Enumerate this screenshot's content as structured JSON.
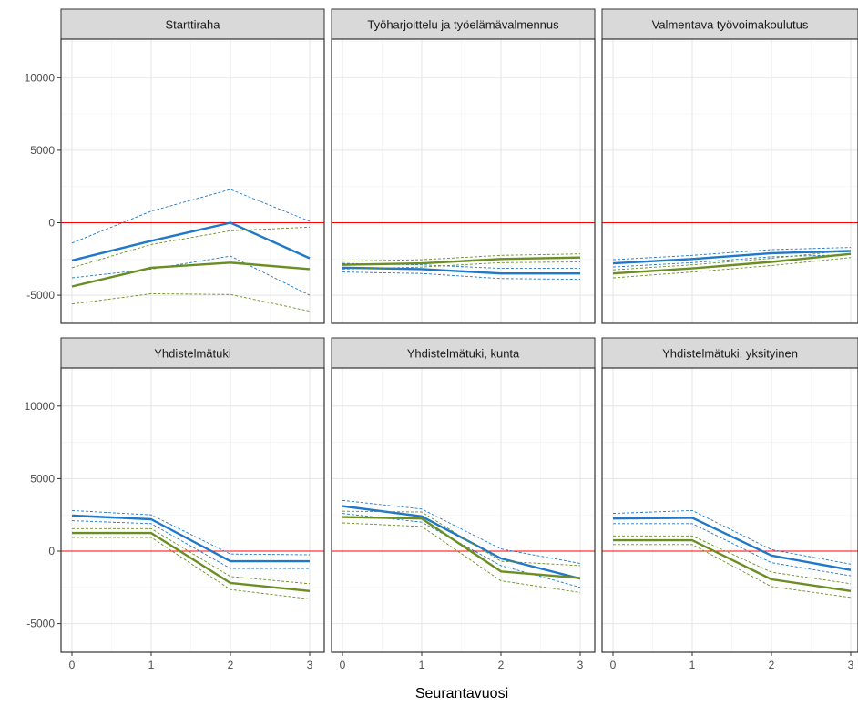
{
  "chart_data": {
    "type": "line",
    "xlabel": "Seurantavuosi",
    "ylabel": "",
    "x": [
      0,
      1,
      2,
      3
    ],
    "xticks": [
      "0",
      "1",
      "2",
      "3"
    ],
    "yticks": [
      -5000,
      0,
      5000,
      10000
    ],
    "ylim": [
      -7000,
      12600
    ],
    "xlim": [
      -0.15,
      3.05
    ],
    "grid": true,
    "reference_line": {
      "y": 0,
      "color": "#ff0000"
    },
    "colors": {
      "blue": "#1f78c8",
      "green": "#6b8e23",
      "reference": "#ff0000"
    },
    "panels": [
      {
        "title": "Starttiraha",
        "series": [
          {
            "color": "blue",
            "values": [
              -2600,
              -1250,
              0,
              -2450
            ],
            "lower": [
              -3800,
              -3200,
              -2300,
              -5000
            ],
            "upper": [
              -1400,
              800,
              2300,
              100
            ]
          },
          {
            "color": "green",
            "values": [
              -4400,
              -3100,
              -2750,
              -3200
            ],
            "lower": [
              -5600,
              -4900,
              -4950,
              -6100
            ],
            "upper": [
              -3100,
              -1500,
              -550,
              -300
            ]
          }
        ]
      },
      {
        "title": "Työharjoittelu ja työelämävalmennus",
        "series": [
          {
            "color": "blue",
            "values": [
              -3100,
              -3200,
              -3500,
              -3500
            ],
            "lower": [
              -3400,
              -3500,
              -3850,
              -3900
            ],
            "upper": [
              -2800,
              -2900,
              -3150,
              -3150
            ]
          },
          {
            "color": "green",
            "values": [
              -2900,
              -2800,
              -2500,
              -2400
            ],
            "lower": [
              -3200,
              -3050,
              -2750,
              -2700
            ],
            "upper": [
              -2650,
              -2550,
              -2250,
              -2150
            ]
          }
        ]
      },
      {
        "title": "Valmentava työvoimakoulutus",
        "series": [
          {
            "color": "blue",
            "values": [
              -2800,
              -2500,
              -2100,
              -1950
            ],
            "lower": [
              -3050,
              -2750,
              -2350,
              -2200
            ],
            "upper": [
              -2550,
              -2250,
              -1850,
              -1700
            ]
          },
          {
            "color": "green",
            "values": [
              -3500,
              -3150,
              -2700,
              -2150
            ],
            "lower": [
              -3800,
              -3400,
              -2950,
              -2400
            ],
            "upper": [
              -3250,
              -2900,
              -2450,
              -1900
            ]
          }
        ]
      },
      {
        "title": "Yhdistelmätuki",
        "series": [
          {
            "color": "blue",
            "values": [
              2450,
              2200,
              -700,
              -700
            ],
            "lower": [
              2100,
              1900,
              -1200,
              -1200
            ],
            "upper": [
              2800,
              2500,
              -200,
              -250
            ]
          },
          {
            "color": "green",
            "values": [
              1250,
              1250,
              -2200,
              -2750
            ],
            "lower": [
              950,
              950,
              -2650,
              -3300
            ],
            "upper": [
              1550,
              1550,
              -1750,
              -2250
            ]
          }
        ]
      },
      {
        "title": "Yhdistelmätuki, kunta",
        "series": [
          {
            "color": "blue",
            "values": [
              3100,
              2400,
              -500,
              -1900
            ],
            "lower": [
              2600,
              2000,
              -1000,
              -2500
            ],
            "upper": [
              3500,
              2900,
              150,
              -850
            ]
          },
          {
            "color": "green",
            "values": [
              2350,
              2250,
              -1400,
              -1850
            ],
            "lower": [
              1950,
              1700,
              -2050,
              -2850
            ],
            "upper": [
              2750,
              2700,
              -700,
              -1000
            ]
          }
        ]
      },
      {
        "title": "Yhdistelmätuki, yksityinen",
        "series": [
          {
            "color": "blue",
            "values": [
              2250,
              2300,
              -300,
              -1300
            ],
            "lower": [
              1900,
              1900,
              -800,
              -1700
            ],
            "upper": [
              2600,
              2800,
              100,
              -900
            ]
          },
          {
            "color": "green",
            "values": [
              750,
              750,
              -1950,
              -2750
            ],
            "lower": [
              450,
              450,
              -2450,
              -3200
            ],
            "upper": [
              1050,
              1050,
              -1450,
              -2250
            ]
          }
        ]
      }
    ]
  }
}
